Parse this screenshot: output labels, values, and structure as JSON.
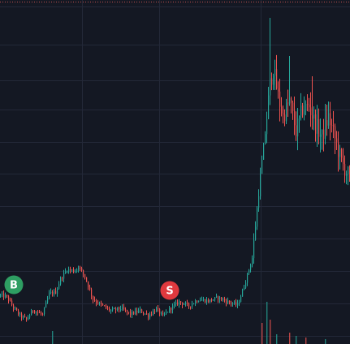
{
  "chart_data": {
    "type": "candlestick",
    "title": "",
    "xlabel": "",
    "ylabel": "",
    "grid": true,
    "legend": "none",
    "colors": {
      "background": "#141823",
      "grid": "#232838",
      "up": "#26a69a",
      "down": "#ef5350",
      "top_border": "#c0504d",
      "buy_marker": "#2e9e62",
      "sell_marker": "#e0393e",
      "marker_text": "#ffffff"
    },
    "ylim": [
      0,
      424
    ],
    "xlim": [
      0,
      215
    ],
    "trace": [
      [
        0,
        60
      ],
      [
        4,
        58
      ],
      [
        8,
        45
      ],
      [
        12,
        35
      ],
      [
        16,
        30
      ],
      [
        20,
        42
      ],
      [
        26,
        36
      ],
      [
        30,
        62
      ],
      [
        34,
        64
      ],
      [
        37,
        80
      ],
      [
        41,
        92
      ],
      [
        46,
        90
      ],
      [
        48,
        96
      ],
      [
        52,
        83
      ],
      [
        57,
        55
      ],
      [
        62,
        48
      ],
      [
        68,
        41
      ],
      [
        74,
        44
      ],
      [
        80,
        37
      ],
      [
        86,
        41
      ],
      [
        91,
        35
      ],
      [
        96,
        43
      ],
      [
        100,
        34
      ],
      [
        104,
        43
      ],
      [
        110,
        52
      ],
      [
        116,
        47
      ],
      [
        122,
        55
      ],
      [
        128,
        53
      ],
      [
        134,
        57
      ],
      [
        140,
        52
      ],
      [
        146,
        48
      ],
      [
        150,
        71
      ],
      [
        155,
        106
      ],
      [
        160,
        207
      ],
      [
        163,
        260
      ],
      [
        166,
        320
      ],
      [
        168,
        340
      ],
      [
        171,
        305
      ],
      [
        174,
        280
      ],
      [
        178,
        300
      ],
      [
        182,
        262
      ],
      [
        186,
        290
      ],
      [
        190,
        293
      ],
      [
        194,
        270
      ],
      [
        198,
        255
      ],
      [
        202,
        280
      ],
      [
        206,
        253
      ],
      [
        210,
        224
      ],
      [
        215,
        205
      ]
    ],
    "spikes": [
      {
        "x": 166,
        "high": 402
      },
      {
        "x": 178,
        "high": 355
      },
      {
        "x": 192,
        "high": 330
      },
      {
        "x": 200,
        "high": 296
      }
    ],
    "volumes": [
      {
        "x": 32,
        "v": 16
      },
      {
        "x": 161,
        "v": 26
      },
      {
        "x": 164,
        "v": 52
      },
      {
        "x": 166,
        "v": 30
      },
      {
        "x": 170,
        "v": 12
      },
      {
        "x": 178,
        "v": 14
      },
      {
        "x": 182,
        "v": 10
      },
      {
        "x": 188,
        "v": 8
      },
      {
        "x": 200,
        "v": 6
      }
    ],
    "markers": [
      {
        "label": "B",
        "kind": "buy",
        "x": 8,
        "y": 73
      },
      {
        "label": "S",
        "kind": "sell",
        "x": 104,
        "y": 66
      }
    ]
  }
}
